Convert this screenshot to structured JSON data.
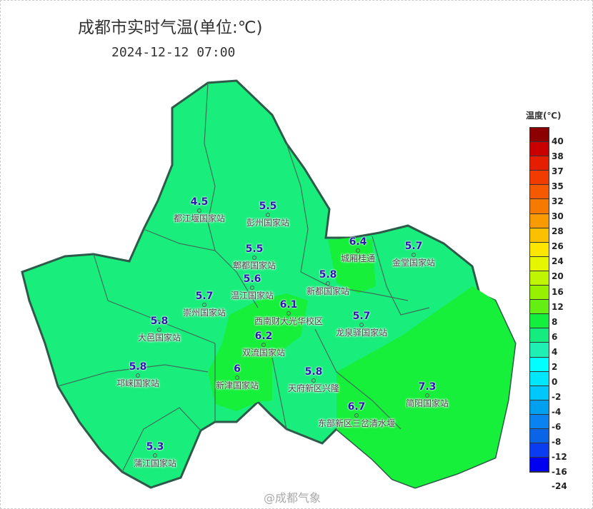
{
  "title": "成都市实时气温(单位:℃)",
  "datetime": "2024-12-12  07:00",
  "legend": {
    "title": "温度(℃)",
    "labels": [
      "40",
      "38",
      "37",
      "35",
      "32",
      "30",
      "28",
      "26",
      "24",
      "20",
      "16",
      "12",
      "8",
      "6",
      "4",
      "2",
      "0",
      "-2",
      "-4",
      "-6",
      "-8",
      "-12",
      "-16",
      "-24"
    ],
    "colors": [
      "#8b0000",
      "#c80000",
      "#e61e00",
      "#f03c00",
      "#f55a00",
      "#f77a00",
      "#f99a00",
      "#fbc000",
      "#ffe600",
      "#e6f500",
      "#c0f500",
      "#96f000",
      "#64ee14",
      "#14ee3c",
      "#14ec80",
      "#1ef0b4",
      "#00ffff",
      "#00e6fa",
      "#00c8fa",
      "#00a0f0",
      "#0a82f0",
      "#0a64e6",
      "#0a3cf0",
      "#0000f0"
    ]
  },
  "fill_colors": {
    "range_4_6": "#19ee7c",
    "range_6_8": "#16f03a"
  },
  "stations": [
    {
      "name": "都江堰国家站",
      "value": "4.5"
    },
    {
      "name": "彭州国家站",
      "value": "5.5"
    },
    {
      "name": "郫都国家站",
      "value": "5.5"
    },
    {
      "name": "温江国家站",
      "value": "5.6"
    },
    {
      "name": "城厢桂通",
      "value": "6.4"
    },
    {
      "name": "新都国家站",
      "value": "5.8"
    },
    {
      "name": "金堂国家站",
      "value": "5.7"
    },
    {
      "name": "崇州国家站",
      "value": "5.7"
    },
    {
      "name": "西南财大光华校区",
      "value": "6.1"
    },
    {
      "name": "双流国家站",
      "value": "6.2"
    },
    {
      "name": "龙泉驿国家站",
      "value": "5.7"
    },
    {
      "name": "大邑国家站",
      "value": "5.8"
    },
    {
      "name": "邛崃国家站",
      "value": "5.8"
    },
    {
      "name": "新津国家站",
      "value": "6"
    },
    {
      "name": "天府新区兴隆",
      "value": "5.8"
    },
    {
      "name": "东部新区三岔清水堰",
      "value": "6.7"
    },
    {
      "name": "简阳国家站",
      "value": "7.3"
    },
    {
      "name": "蒲江国家站",
      "value": "5.3"
    }
  ],
  "watermark": "@成都气象"
}
